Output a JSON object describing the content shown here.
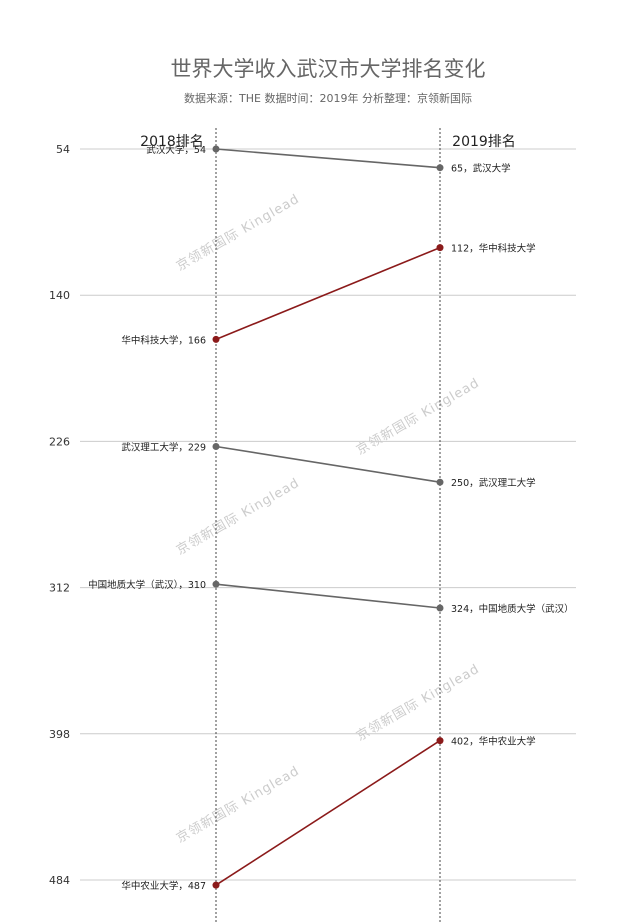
{
  "chart_data": {
    "type": "line",
    "title": "世界大学收入武汉市大学排名变化",
    "subtitle": "数据来源：THE 数据时间：2019年 分析整理：京领新国际",
    "columns": [
      "2018排名",
      "2019排名"
    ],
    "y_ticks": [
      54,
      140,
      226,
      312,
      398,
      484
    ],
    "ylim": [
      54,
      484
    ],
    "y_inverted": true,
    "grid": true,
    "watermark": "京领新国际 Kinglead",
    "colors": {
      "down": "#666666",
      "up": "#8b1a1a"
    },
    "series": [
      {
        "name": "武汉大学",
        "left_label": "武汉大学，54",
        "right_label": "65，武汉大学",
        "values": [
          54,
          65
        ],
        "trend": "down"
      },
      {
        "name": "华中科技大学",
        "left_label": "华中科技大学，166",
        "right_label": "112，华中科技大学",
        "values": [
          166,
          112
        ],
        "trend": "up"
      },
      {
        "name": "武汉理工大学",
        "left_label": "武汉理工大学，229",
        "right_label": "250，武汉理工大学",
        "values": [
          229,
          250
        ],
        "trend": "down"
      },
      {
        "name": "中国地质大学（武汉）",
        "left_label": "中国地质大学（武汉），310",
        "right_label": "324，中国地质大学（武汉）",
        "values": [
          310,
          324
        ],
        "trend": "down"
      },
      {
        "name": "华中农业大学",
        "left_label": "华中农业大学，487",
        "right_label": "402，华中农业大学",
        "values": [
          487,
          402
        ],
        "trend": "up"
      }
    ]
  }
}
